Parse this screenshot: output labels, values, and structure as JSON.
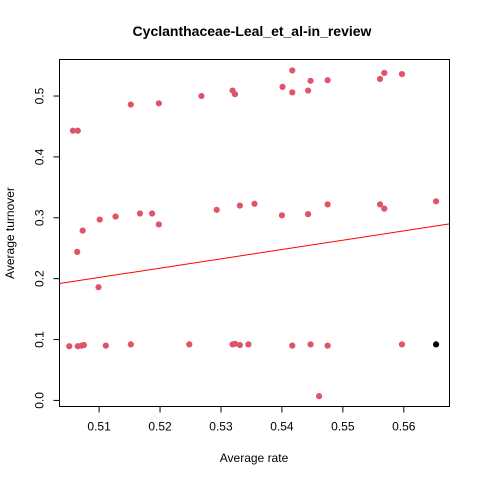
{
  "chart_data": {
    "type": "scatter",
    "title": "Cyclanthaceae-Leal_et_al-in_review",
    "xlabel": "Average rate",
    "ylabel": "Average turnover",
    "xlim": [
      0.5035,
      0.5675
    ],
    "ylim": [
      -0.01,
      0.56
    ],
    "x_ticks": [
      "0.51",
      "0.52",
      "0.53",
      "0.54",
      "0.55",
      "0.56"
    ],
    "y_ticks": [
      "0.0",
      "0.1",
      "0.2",
      "0.3",
      "0.4",
      "0.5"
    ],
    "grid": false,
    "colors": {
      "points": "#DF536B",
      "highlight": "#000000",
      "trend": "#FF0000",
      "axis": "#000000"
    },
    "series": [
      {
        "points": [
          [
            0.5057,
            0.443
          ],
          [
            0.5065,
            0.443
          ],
          [
            0.5152,
            0.486
          ],
          [
            0.5198,
            0.488
          ],
          [
            0.5268,
            0.5
          ],
          [
            0.5319,
            0.509
          ],
          [
            0.5323,
            0.503
          ],
          [
            0.5401,
            0.515
          ],
          [
            0.5417,
            0.542
          ],
          [
            0.5417,
            0.506
          ],
          [
            0.5443,
            0.509
          ],
          [
            0.5447,
            0.525
          ],
          [
            0.5475,
            0.526
          ],
          [
            0.5561,
            0.528
          ],
          [
            0.5568,
            0.538
          ],
          [
            0.5597,
            0.536
          ],
          [
            0.5064,
            0.244
          ],
          [
            0.5073,
            0.279
          ],
          [
            0.5101,
            0.297
          ],
          [
            0.5127,
            0.302
          ],
          [
            0.5167,
            0.307
          ],
          [
            0.5187,
            0.307
          ],
          [
            0.5198,
            0.289
          ],
          [
            0.5293,
            0.313
          ],
          [
            0.5331,
            0.32
          ],
          [
            0.5355,
            0.323
          ],
          [
            0.54,
            0.304
          ],
          [
            0.5443,
            0.306
          ],
          [
            0.5475,
            0.322
          ],
          [
            0.5561,
            0.322
          ],
          [
            0.5568,
            0.315
          ],
          [
            0.5653,
            0.327
          ],
          [
            0.5099,
            0.186
          ],
          [
            0.5051,
            0.089
          ],
          [
            0.5065,
            0.089
          ],
          [
            0.5071,
            0.09
          ],
          [
            0.5075,
            0.091
          ],
          [
            0.5111,
            0.09
          ],
          [
            0.5152,
            0.092
          ],
          [
            0.5248,
            0.092
          ],
          [
            0.5319,
            0.092
          ],
          [
            0.5323,
            0.093
          ],
          [
            0.5331,
            0.091
          ],
          [
            0.5345,
            0.092
          ],
          [
            0.5417,
            0.09
          ],
          [
            0.5447,
            0.092
          ],
          [
            0.5475,
            0.09
          ],
          [
            0.5597,
            0.092
          ],
          [
            0.5461,
            0.007
          ]
        ]
      }
    ],
    "highlight_point": [
      0.5653,
      0.092
    ],
    "trend_line": {
      "x": [
        0.5035,
        0.5675
      ],
      "y": [
        0.192,
        0.29
      ]
    }
  }
}
